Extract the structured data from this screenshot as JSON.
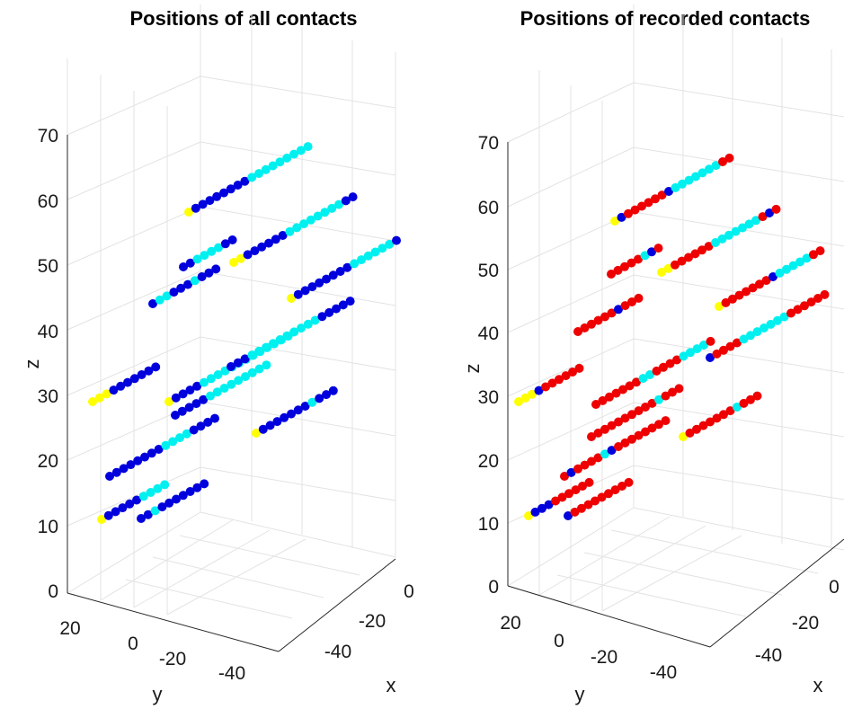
{
  "chart_data": [
    {
      "type": "scatter",
      "title": "Positions of all contacts",
      "xlabel": "x",
      "ylabel": "y",
      "zlabel": "z",
      "x_ticks": [
        "0",
        "-20",
        "-40"
      ],
      "y_ticks": [
        "20",
        "0",
        "-20",
        "-40"
      ],
      "z_ticks": [
        "0",
        "10",
        "20",
        "30",
        "40",
        "50",
        "60",
        "70"
      ],
      "zlim": [
        0,
        70
      ],
      "grid": true,
      "colors": {
        "blue": "#0000dd",
        "cyan": "#00f0f0",
        "yellow": "#ffff00",
        "red": "#ee0000"
      },
      "electrodes": [
        {
          "start_z": 58,
          "count": 18,
          "colors": "YBBBBBBBBCCCCCCCCC"
        },
        {
          "start_z": 50,
          "count": 8,
          "colors": "BBCCCCBB"
        },
        {
          "start_z": 50,
          "count": 18,
          "colors": "YYBBBBBBCCCCCCCCBB"
        },
        {
          "start_z": 40,
          "count": 10,
          "colors": "BCCBBBCBBB"
        },
        {
          "start_z": 44,
          "count": 16,
          "colors": "YBBBBBBBBCCCCCCB"
        },
        {
          "start_z": 29,
          "count": 10,
          "colors": "YYYBBBBBBB"
        },
        {
          "start_z": 29,
          "count": 18,
          "colors": "YBBBBCCCCCCCCCCCCC"
        },
        {
          "start_z": 37,
          "count": 18,
          "colors": "BBBCCCCCCCCCCBBBBB"
        },
        {
          "start_z": 25,
          "count": 14,
          "colors": "BBBBBCCCCCCCCC"
        },
        {
          "start_z": 24,
          "count": 12,
          "colors": "YBBBBBBBCBBB"
        },
        {
          "start_z": 17,
          "count": 16,
          "colors": "BBBBBBBBCCCCBBBB"
        },
        {
          "start_z": 11,
          "count": 10,
          "colors": "YBBBBBCCCC"
        },
        {
          "start_z": 11,
          "count": 10,
          "colors": "BBCBBBBBBB"
        }
      ]
    },
    {
      "type": "scatter",
      "title": "Positions of recorded contacts",
      "xlabel": "x",
      "ylabel": "y",
      "zlabel": "z",
      "x_ticks": [
        "0",
        "-20",
        "-40"
      ],
      "y_ticks": [
        "20",
        "0",
        "-20",
        "-40"
      ],
      "z_ticks": [
        "0",
        "10",
        "20",
        "30",
        "40",
        "50",
        "60",
        "70"
      ],
      "zlim": [
        0,
        70
      ],
      "grid": true,
      "colors": {
        "blue": "#0000dd",
        "cyan": "#00f0f0",
        "yellow": "#ffff00",
        "red": "#ee0000"
      },
      "electrodes": [
        {
          "start_z": 58,
          "count": 18,
          "colors": "YBRRRRRRBCCCCCCCRR"
        },
        {
          "start_z": 50,
          "count": 8,
          "colors": "RRRRRCBR"
        },
        {
          "start_z": 50,
          "count": 18,
          "colors": "YYRRRRRRCCCCCCCRBR"
        },
        {
          "start_z": 40,
          "count": 10,
          "colors": "RRRRRRBRRR"
        },
        {
          "start_z": 44,
          "count": 16,
          "colors": "YRRRRRRRBCCCCCRR"
        },
        {
          "start_z": 29,
          "count": 10,
          "colors": "YYYBRRRRRR"
        },
        {
          "start_z": 29,
          "count": 18,
          "colors": "RRRRRRRCCRRRRCCCCR"
        },
        {
          "start_z": 37,
          "count": 18,
          "colors": "BRRRRCCCCCCCRRRRRR"
        },
        {
          "start_z": 25,
          "count": 14,
          "colors": "RRRRRRRRRRCRRR"
        },
        {
          "start_z": 24,
          "count": 12,
          "colors": "YRRRRRRRCRRR"
        },
        {
          "start_z": 17,
          "count": 16,
          "colors": "RBRRRRCBRRRRRRRR"
        },
        {
          "start_z": 11,
          "count": 10,
          "colors": "YBBBRRRRRR"
        },
        {
          "start_z": 11,
          "count": 10,
          "colors": "BRRRRRRRRR"
        }
      ]
    }
  ]
}
